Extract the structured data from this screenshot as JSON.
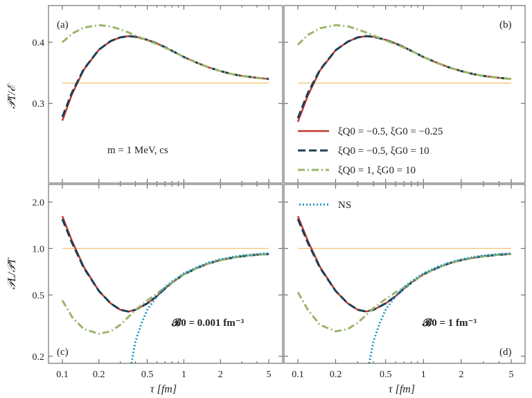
{
  "figure": {
    "panel_labels": [
      "(a)",
      "(b)",
      "(c)",
      "(d)"
    ],
    "top_ylabel": "𝒫T/ℰ",
    "bottom_ylabel": "𝒫L/𝒫T",
    "xlabel": "τ [fm]",
    "annotation_mass": "m = 1 MeV, cs",
    "annotation_c": "𝓑0 = 0.001 fm⁻³",
    "annotation_d": "𝓑0 = 1 fm⁻³"
  },
  "legend": [
    {
      "label": "ξQ0 = −0.5, ξG0 = −0.25",
      "color": "#c0392b",
      "style": "solid"
    },
    {
      "label": "ξQ0 = −0.5, ξG0 = 10",
      "color": "#1c3f55",
      "style": "dashed"
    },
    {
      "label": "ξQ0 = 1, ξG0 = 10",
      "color": "#9bb56a",
      "style": "dashdot"
    },
    {
      "label": "NS",
      "color": "#1f95c4",
      "style": "dotted"
    }
  ],
  "colors": {
    "ref_line": "#f0c060"
  },
  "chart_data": [
    {
      "panel": "(a)",
      "type": "line",
      "xscale": "log",
      "xlim": [
        0.1,
        5
      ],
      "ylim": [
        0.17,
        0.46
      ],
      "xticks": [
        0.1,
        0.2,
        0.5,
        1,
        2,
        5
      ],
      "xticklabels": [
        "0.1",
        "0.2",
        "0.5",
        "1",
        "2",
        "5"
      ],
      "yticks": [
        0.3,
        0.4
      ],
      "yticklabels": [
        "0.3",
        "0.4"
      ],
      "reference": 0.3333,
      "series": [
        {
          "name": "ξQ0 = −0.5, ξG0 = −0.25",
          "x": [
            0.1,
            0.12,
            0.15,
            0.2,
            0.25,
            0.3,
            0.35,
            0.4,
            0.5,
            0.6,
            0.7,
            0.8,
            1.0,
            1.3,
            1.6,
            2.0,
            2.5,
            3.0,
            4.0,
            5.0
          ],
          "y": [
            0.272,
            0.315,
            0.355,
            0.388,
            0.402,
            0.408,
            0.41,
            0.409,
            0.404,
            0.398,
            0.392,
            0.386,
            0.376,
            0.366,
            0.359,
            0.353,
            0.348,
            0.345,
            0.342,
            0.34
          ]
        },
        {
          "name": "ξQ0 = −0.5, ξG0 = 10",
          "x": [
            0.1,
            0.12,
            0.15,
            0.2,
            0.25,
            0.3,
            0.35,
            0.4,
            0.5,
            0.6,
            0.7,
            0.8,
            1.0,
            1.3,
            1.6,
            2.0,
            2.5,
            3.0,
            4.0,
            5.0
          ],
          "y": [
            0.278,
            0.318,
            0.356,
            0.388,
            0.402,
            0.408,
            0.41,
            0.409,
            0.404,
            0.398,
            0.392,
            0.386,
            0.376,
            0.366,
            0.359,
            0.353,
            0.348,
            0.345,
            0.342,
            0.34
          ]
        },
        {
          "name": "ξQ0 = 1, ξG0 = 10",
          "x": [
            0.1,
            0.12,
            0.15,
            0.2,
            0.25,
            0.3,
            0.35,
            0.4,
            0.5,
            0.6,
            0.7,
            0.8,
            1.0,
            1.3,
            1.6,
            2.0,
            2.5,
            3.0,
            4.0,
            5.0
          ],
          "y": [
            0.4,
            0.414,
            0.424,
            0.428,
            0.426,
            0.421,
            0.416,
            0.411,
            0.403,
            0.397,
            0.391,
            0.386,
            0.376,
            0.366,
            0.359,
            0.353,
            0.348,
            0.345,
            0.342,
            0.34
          ]
        }
      ]
    },
    {
      "panel": "(b)",
      "type": "line",
      "xscale": "log",
      "xlim": [
        0.1,
        5
      ],
      "ylim": [
        0.17,
        0.46
      ],
      "xticks": [
        0.1,
        0.2,
        0.5,
        1,
        2,
        5
      ],
      "xticklabels": [
        "0.1",
        "0.2",
        "0.5",
        "1",
        "2",
        "5"
      ],
      "yticks": [
        0.3,
        0.4
      ],
      "yticklabels": [
        "",
        ""
      ],
      "reference": 0.3333,
      "series": [
        {
          "name": "ξQ0 = −0.5, ξG0 = −0.25",
          "x": [
            0.1,
            0.12,
            0.15,
            0.2,
            0.25,
            0.3,
            0.35,
            0.4,
            0.5,
            0.6,
            0.7,
            0.8,
            1.0,
            1.3,
            1.6,
            2.0,
            2.5,
            3.0,
            4.0,
            5.0
          ],
          "y": [
            0.27,
            0.313,
            0.354,
            0.387,
            0.401,
            0.408,
            0.41,
            0.409,
            0.404,
            0.398,
            0.392,
            0.386,
            0.376,
            0.366,
            0.359,
            0.353,
            0.348,
            0.345,
            0.342,
            0.34
          ]
        },
        {
          "name": "ξQ0 = −0.5, ξG0 = 10",
          "x": [
            0.1,
            0.12,
            0.15,
            0.2,
            0.25,
            0.3,
            0.35,
            0.4,
            0.5,
            0.6,
            0.7,
            0.8,
            1.0,
            1.3,
            1.6,
            2.0,
            2.5,
            3.0,
            4.0,
            5.0
          ],
          "y": [
            0.276,
            0.317,
            0.355,
            0.387,
            0.401,
            0.408,
            0.41,
            0.409,
            0.404,
            0.398,
            0.392,
            0.386,
            0.376,
            0.366,
            0.359,
            0.353,
            0.348,
            0.345,
            0.342,
            0.34
          ]
        },
        {
          "name": "ξQ0 = 1, ξG0 = 10",
          "x": [
            0.1,
            0.12,
            0.15,
            0.2,
            0.25,
            0.3,
            0.35,
            0.4,
            0.5,
            0.6,
            0.7,
            0.8,
            1.0,
            1.3,
            1.6,
            2.0,
            2.5,
            3.0,
            4.0,
            5.0
          ],
          "y": [
            0.396,
            0.412,
            0.423,
            0.428,
            0.426,
            0.421,
            0.416,
            0.411,
            0.403,
            0.397,
            0.391,
            0.386,
            0.376,
            0.366,
            0.359,
            0.353,
            0.348,
            0.345,
            0.342,
            0.34
          ]
        }
      ]
    },
    {
      "panel": "(c)",
      "type": "line",
      "xscale": "log",
      "yscale": "log",
      "xlim": [
        0.1,
        5
      ],
      "ylim": [
        0.18,
        2.6
      ],
      "xticks": [
        0.1,
        0.2,
        0.5,
        1,
        2,
        5
      ],
      "xticklabels": [
        "0.1",
        "0.2",
        "0.5",
        "1",
        "2",
        "5"
      ],
      "yticks": [
        0.2,
        0.5,
        1.0,
        2.0
      ],
      "yticklabels": [
        "0.2",
        "0.5",
        "1.0",
        "2.0"
      ],
      "reference": 1.0,
      "series": [
        {
          "name": "ξQ0 = −0.5, ξG0 = −0.25",
          "x": [
            0.1,
            0.12,
            0.15,
            0.2,
            0.25,
            0.3,
            0.35,
            0.4,
            0.5,
            0.6,
            0.7,
            0.8,
            1.0,
            1.3,
            1.6,
            2.0,
            2.5,
            3.0,
            4.0,
            5.0
          ],
          "y": [
            1.62,
            1.12,
            0.76,
            0.53,
            0.44,
            0.4,
            0.39,
            0.4,
            0.44,
            0.49,
            0.55,
            0.6,
            0.68,
            0.75,
            0.8,
            0.84,
            0.87,
            0.89,
            0.91,
            0.92
          ]
        },
        {
          "name": "ξQ0 = −0.5, ξG0 = 10",
          "x": [
            0.1,
            0.12,
            0.15,
            0.2,
            0.25,
            0.3,
            0.35,
            0.4,
            0.5,
            0.6,
            0.7,
            0.8,
            1.0,
            1.3,
            1.6,
            2.0,
            2.5,
            3.0,
            4.0,
            5.0
          ],
          "y": [
            1.55,
            1.09,
            0.75,
            0.53,
            0.44,
            0.4,
            0.39,
            0.4,
            0.44,
            0.49,
            0.55,
            0.6,
            0.68,
            0.75,
            0.8,
            0.84,
            0.87,
            0.89,
            0.91,
            0.92
          ]
        },
        {
          "name": "ξQ0 = 1, ξG0 = 10",
          "x": [
            0.1,
            0.12,
            0.15,
            0.2,
            0.25,
            0.3,
            0.35,
            0.4,
            0.5,
            0.6,
            0.7,
            0.8,
            1.0,
            1.3,
            1.6,
            2.0,
            2.5,
            3.0,
            4.0,
            5.0
          ],
          "y": [
            0.46,
            0.36,
            0.3,
            0.28,
            0.29,
            0.32,
            0.36,
            0.4,
            0.46,
            0.51,
            0.56,
            0.6,
            0.68,
            0.75,
            0.8,
            0.84,
            0.87,
            0.89,
            0.91,
            0.92
          ]
        },
        {
          "name": "NS",
          "x": [
            0.37,
            0.4,
            0.45,
            0.5,
            0.6,
            0.7,
            0.8,
            1.0,
            1.3,
            1.6,
            2.0,
            2.5,
            3.0,
            4.0,
            5.0
          ],
          "y": [
            0.18,
            0.25,
            0.33,
            0.4,
            0.49,
            0.56,
            0.61,
            0.69,
            0.76,
            0.81,
            0.85,
            0.88,
            0.9,
            0.92,
            0.93
          ]
        }
      ]
    },
    {
      "panel": "(d)",
      "type": "line",
      "xscale": "log",
      "yscale": "log",
      "xlim": [
        0.1,
        5
      ],
      "ylim": [
        0.18,
        2.6
      ],
      "xticks": [
        0.1,
        0.2,
        0.5,
        1,
        2,
        5
      ],
      "xticklabels": [
        "0.1",
        "0.2",
        "0.5",
        "1",
        "2",
        "5"
      ],
      "yticks": [
        0.2,
        0.5,
        1.0,
        2.0
      ],
      "yticklabels": [
        "",
        "",
        "",
        ""
      ],
      "reference": 1.0,
      "series": [
        {
          "name": "ξQ0 = −0.5, ξG0 = −0.25",
          "x": [
            0.1,
            0.12,
            0.15,
            0.2,
            0.25,
            0.3,
            0.35,
            0.4,
            0.5,
            0.6,
            0.7,
            0.8,
            1.0,
            1.3,
            1.6,
            2.0,
            2.5,
            3.0,
            4.0,
            5.0
          ],
          "y": [
            1.62,
            1.12,
            0.76,
            0.53,
            0.44,
            0.4,
            0.39,
            0.4,
            0.44,
            0.49,
            0.55,
            0.6,
            0.68,
            0.75,
            0.8,
            0.84,
            0.87,
            0.89,
            0.91,
            0.92
          ]
        },
        {
          "name": "ξQ0 = −0.5, ξG0 = 10",
          "x": [
            0.1,
            0.12,
            0.15,
            0.2,
            0.25,
            0.3,
            0.35,
            0.4,
            0.5,
            0.6,
            0.7,
            0.8,
            1.0,
            1.3,
            1.6,
            2.0,
            2.5,
            3.0,
            4.0,
            5.0
          ],
          "y": [
            1.55,
            1.09,
            0.75,
            0.53,
            0.44,
            0.4,
            0.39,
            0.4,
            0.44,
            0.49,
            0.55,
            0.6,
            0.68,
            0.75,
            0.8,
            0.84,
            0.87,
            0.89,
            0.91,
            0.92
          ]
        },
        {
          "name": "ξQ0 = 1, ξG0 = 10",
          "x": [
            0.1,
            0.12,
            0.15,
            0.2,
            0.25,
            0.3,
            0.35,
            0.4,
            0.5,
            0.6,
            0.7,
            0.8,
            1.0,
            1.3,
            1.6,
            2.0,
            2.5,
            3.0,
            4.0,
            5.0
          ],
          "y": [
            0.52,
            0.4,
            0.32,
            0.29,
            0.3,
            0.33,
            0.37,
            0.41,
            0.47,
            0.52,
            0.56,
            0.6,
            0.68,
            0.75,
            0.8,
            0.84,
            0.87,
            0.89,
            0.91,
            0.92
          ]
        },
        {
          "name": "NS",
          "x": [
            0.37,
            0.4,
            0.45,
            0.5,
            0.6,
            0.7,
            0.8,
            1.0,
            1.3,
            1.6,
            2.0,
            2.5,
            3.0,
            4.0,
            5.0
          ],
          "y": [
            0.18,
            0.25,
            0.33,
            0.4,
            0.49,
            0.56,
            0.61,
            0.69,
            0.76,
            0.81,
            0.85,
            0.88,
            0.9,
            0.92,
            0.93
          ]
        }
      ]
    }
  ]
}
